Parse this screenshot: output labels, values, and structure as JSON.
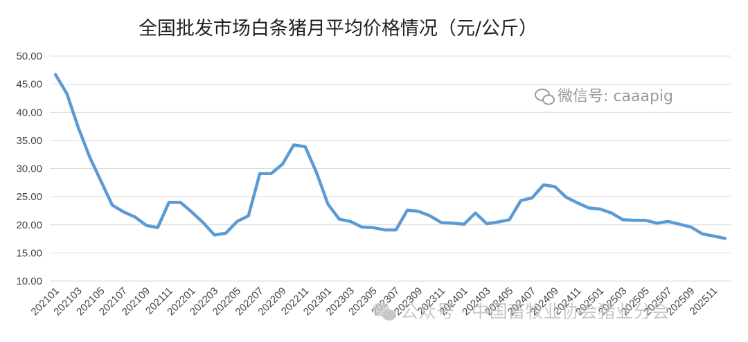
{
  "chart_data": {
    "type": "line",
    "title": "全国批发市场白条猪月平均价格情况（元/公斤）",
    "xlabel": "",
    "ylabel": "",
    "ylim": [
      10,
      50
    ],
    "yticks": [
      "10.00",
      "15.00",
      "20.00",
      "25.00",
      "30.00",
      "35.00",
      "40.00",
      "45.00",
      "50.00"
    ],
    "x_tick_labels": [
      "202101",
      "202103",
      "202105",
      "202107",
      "202109",
      "202111",
      "202201",
      "202203",
      "202205",
      "202207",
      "202209",
      "202211",
      "202301",
      "202303",
      "202305",
      "202307",
      "202309",
      "202311",
      "202401",
      "202403",
      "202405",
      "202407",
      "202409",
      "202411",
      "202501",
      "202503",
      "202505",
      "202507",
      "202509",
      "202511"
    ],
    "grid": true,
    "legend": "none",
    "line_color": "#5b9bd5",
    "x": [
      "202101",
      "202102",
      "202103",
      "202104",
      "202105",
      "202106",
      "202107",
      "202108",
      "202109",
      "202110",
      "202111",
      "202112",
      "202201",
      "202202",
      "202203",
      "202204",
      "202205",
      "202206",
      "202207",
      "202208",
      "202209",
      "202210",
      "202211",
      "202212",
      "202301",
      "202302",
      "202303",
      "202304",
      "202305",
      "202306",
      "202307",
      "202308",
      "202309",
      "202310",
      "202311",
      "202312",
      "202401",
      "202402",
      "202403",
      "202404",
      "202405",
      "202406",
      "202407",
      "202408",
      "202409",
      "202410",
      "202411",
      "202412",
      "202501",
      "202502",
      "202503",
      "202504",
      "202505",
      "202506",
      "202507",
      "202508",
      "202509",
      "202510",
      "202511",
      "202512"
    ],
    "series": [
      {
        "values": [
          46.7,
          43.3,
          37.3,
          32.1,
          27.8,
          23.5,
          22.3,
          21.4,
          19.9,
          19.5,
          24.0,
          24.0,
          22.3,
          20.4,
          18.2,
          18.5,
          20.6,
          21.6,
          29.1,
          29.1,
          30.8,
          34.2,
          33.9,
          29.3,
          23.7,
          21.0,
          20.6,
          19.6,
          19.5,
          19.1,
          19.1,
          22.6,
          22.4,
          21.6,
          20.4,
          20.3,
          20.1,
          22.1,
          20.2,
          20.5,
          20.9,
          24.3,
          24.8,
          27.1,
          26.8,
          24.9,
          23.9,
          23.0,
          22.8,
          22.1,
          20.9,
          20.8,
          20.8,
          20.3,
          20.6,
          20.1,
          19.6,
          18.4,
          18.0,
          17.6
        ]
      }
    ]
  },
  "watermark": {
    "top_text": "微信号: caaapig",
    "top_icon": "wechat-icon",
    "bottom_text": "公众号 · 中国畜牧业协会猪业分会",
    "bottom_icon": "wechat-icon"
  }
}
